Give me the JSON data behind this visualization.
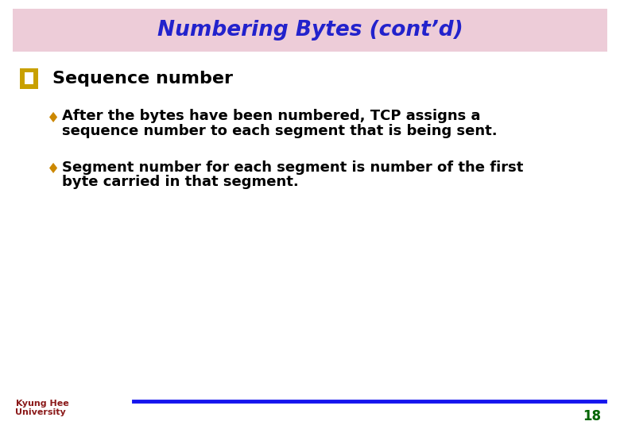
{
  "title": "Numbering Bytes (cont’d)",
  "title_color": "#2222CC",
  "title_bg_color": "#EDCCD8",
  "title_fontsize": 19,
  "section_header": "Sequence number",
  "section_header_color": "#000000",
  "section_header_fontsize": 16,
  "bullet1_line1": "After the bytes have been numbered, TCP assigns a",
  "bullet1_line2": "sequence number to each segment that is being sent.",
  "bullet2_line1": "Segment number for each segment is number of the first",
  "bullet2_line2": "byte carried in that segment.",
  "bullet_color": "#CC8800",
  "body_fontsize": 13,
  "body_color": "#000000",
  "footer_line_color": "#1515EE",
  "footer_number": "18",
  "footer_number_color": "#006400",
  "footer_fontsize": 12,
  "bg_color": "#FFFFFF",
  "univ_text_color": "#8B1A1A",
  "q_bullet_outer": "#C8A000",
  "q_bullet_inner": "#FFFFFF"
}
